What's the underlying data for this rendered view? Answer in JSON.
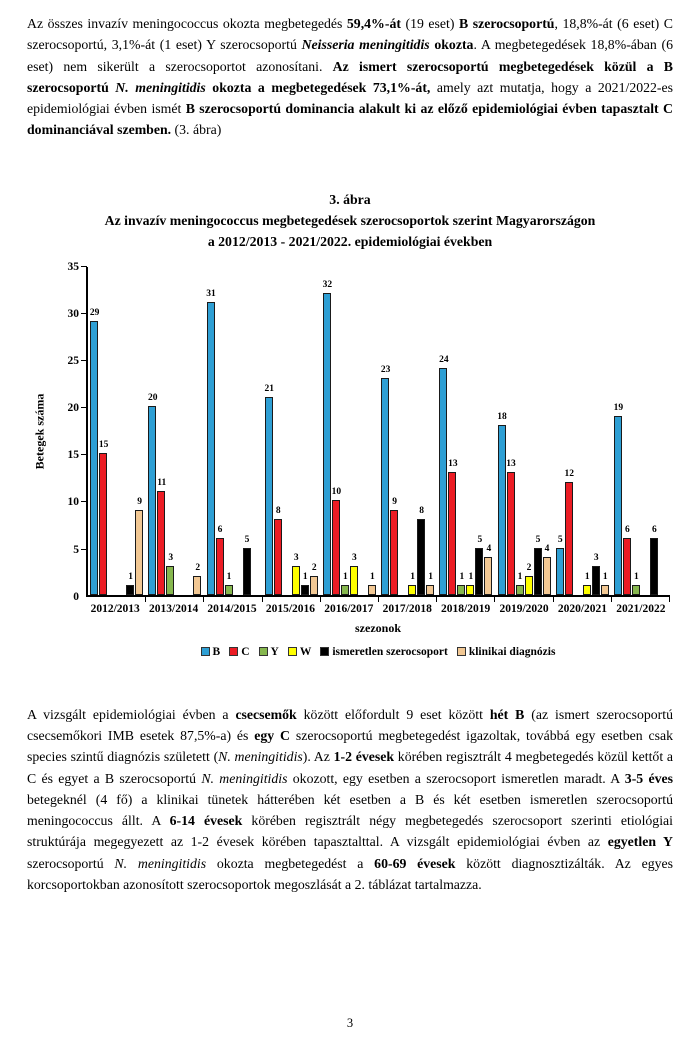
{
  "page": {
    "number": "3"
  },
  "intro": {
    "segments": [
      {
        "t": "Az összes invazív meningococcus okozta megbetegedés ",
        "s": ""
      },
      {
        "t": "59,4%-át",
        "s": "b"
      },
      {
        "t": " (19 eset) ",
        "s": ""
      },
      {
        "t": "B szerocsoportú",
        "s": "b"
      },
      {
        "t": ", 18,8%-át (6 eset) C szerocsoportú, 3,1%-át (1 eset) Y szerocsoportú ",
        "s": ""
      },
      {
        "t": "Neisseria meningitidis",
        "s": "bi"
      },
      {
        "t": " ",
        "s": ""
      },
      {
        "t": "okozta",
        "s": "b"
      },
      {
        "t": ". A megbetegedések 18,8%-ában (6 eset) nem sikerült a szerocsoportot azonosítani. ",
        "s": ""
      },
      {
        "t": "Az ismert szerocsoportú megbetegedések közül a B szerocsoportú ",
        "s": "b"
      },
      {
        "t": "N. meningitidis",
        "s": "bi"
      },
      {
        "t": " okozta a megbetegedések 73,1%-át,",
        "s": "b"
      },
      {
        "t": " amely azt mutatja, hogy a 2021/2022-es epidemiológiai évben ismét ",
        "s": ""
      },
      {
        "t": "B szerocsoportú dominancia alakult ki az előző epidemiológiai évben tapasztalt C dominanciával szemben.",
        "s": "b"
      },
      {
        "t": " (3. ábra)",
        "s": ""
      }
    ]
  },
  "figure": {
    "caption_line1": "3. ábra",
    "caption_line2": "Az invazív meningococcus megbetegedések szerocsoportok szerint Magyarországon",
    "caption_line3": "a 2012/2013 - 2021/2022. epidemiológiai években"
  },
  "chart_data": {
    "type": "bar",
    "title": "",
    "categories": [
      "2012/2013",
      "2013/2014",
      "2014/2015",
      "2015/2016",
      "2016/2017",
      "2017/2018",
      "2018/2019",
      "2019/2020",
      "2020/2021",
      "2021/2022"
    ],
    "series": [
      {
        "name": "B",
        "color": "#2E9FD4",
        "values": [
          29,
          20,
          31,
          21,
          32,
          23,
          24,
          18,
          5,
          19
        ]
      },
      {
        "name": "C",
        "color": "#EC1C24",
        "values": [
          15,
          11,
          6,
          8,
          10,
          9,
          13,
          13,
          12,
          6
        ]
      },
      {
        "name": "Y",
        "color": "#86B74E",
        "values": [
          0,
          3,
          1,
          0,
          1,
          0,
          1,
          1,
          0,
          1
        ]
      },
      {
        "name": "W",
        "color": "#FFFF00",
        "values": [
          0,
          0,
          0,
          3,
          3,
          1,
          1,
          2,
          1,
          0
        ]
      },
      {
        "name": "ismeretlen szerocsoport",
        "color": "#000000",
        "values": [
          1,
          0,
          5,
          1,
          0,
          8,
          5,
          5,
          3,
          6
        ]
      },
      {
        "name": "klinikai diagnózis",
        "color": "#F2C894",
        "values": [
          9,
          2,
          0,
          2,
          1,
          1,
          4,
          4,
          1,
          0
        ]
      }
    ],
    "xlabel": "szezonok",
    "ylabel": "Betegek száma",
    "ylim": [
      0,
      35
    ],
    "ytick_step": 5,
    "grid": false,
    "legend_position": "bottom"
  },
  "body": {
    "segments": [
      {
        "t": "A vizsgált epidemiológiai évben a ",
        "s": ""
      },
      {
        "t": "csecsemők",
        "s": "b"
      },
      {
        "t": " között előfordult 9 eset között ",
        "s": ""
      },
      {
        "t": "hét B",
        "s": "b"
      },
      {
        "t": " (az ismert szerocsoportú csecsemőkori IMB esetek 87,5%-a) és ",
        "s": ""
      },
      {
        "t": "egy C",
        "s": "b"
      },
      {
        "t": " szerocsoportú megbetegedést igazoltak, továbbá egy esetben csak species szintű diagnózis született (",
        "s": ""
      },
      {
        "t": "N. meningitidis",
        "s": "i"
      },
      {
        "t": "). Az ",
        "s": ""
      },
      {
        "t": "1-2 évesek",
        "s": "b"
      },
      {
        "t": " körében regisztrált 4 megbetegedés közül kettőt a C és egyet a B szerocsoportú ",
        "s": ""
      },
      {
        "t": "N. meningitidis",
        "s": "i"
      },
      {
        "t": " okozott, egy esetben a szerocsoport ismeretlen maradt. A ",
        "s": ""
      },
      {
        "t": "3-5 éves",
        "s": "b"
      },
      {
        "t": " betegeknél (4 fő) a klinikai tünetek hátterében két esetben a B és két esetben ismeretlen szerocsoportú meningococcus állt. A ",
        "s": ""
      },
      {
        "t": "6-14 évesek",
        "s": "b"
      },
      {
        "t": " körében regisztrált négy megbetegedés szerocsoport szerinti etiológiai struktúrája megegyezett az 1-2 évesek körében tapasztalttal. A vizsgált epidemiológiai évben az ",
        "s": ""
      },
      {
        "t": "egyetlen Y",
        "s": "b"
      },
      {
        "t": " szerocsoportú ",
        "s": ""
      },
      {
        "t": "N. meningitidis",
        "s": "i"
      },
      {
        "t": " okozta megbetegedést a ",
        "s": ""
      },
      {
        "t": "60-69 évesek",
        "s": "b"
      },
      {
        "t": " között diagnosztizálták. Az egyes korcsoportokban azonosított szerocsoportok megoszlását a 2. táblázat tartalmazza.",
        "s": ""
      }
    ]
  }
}
